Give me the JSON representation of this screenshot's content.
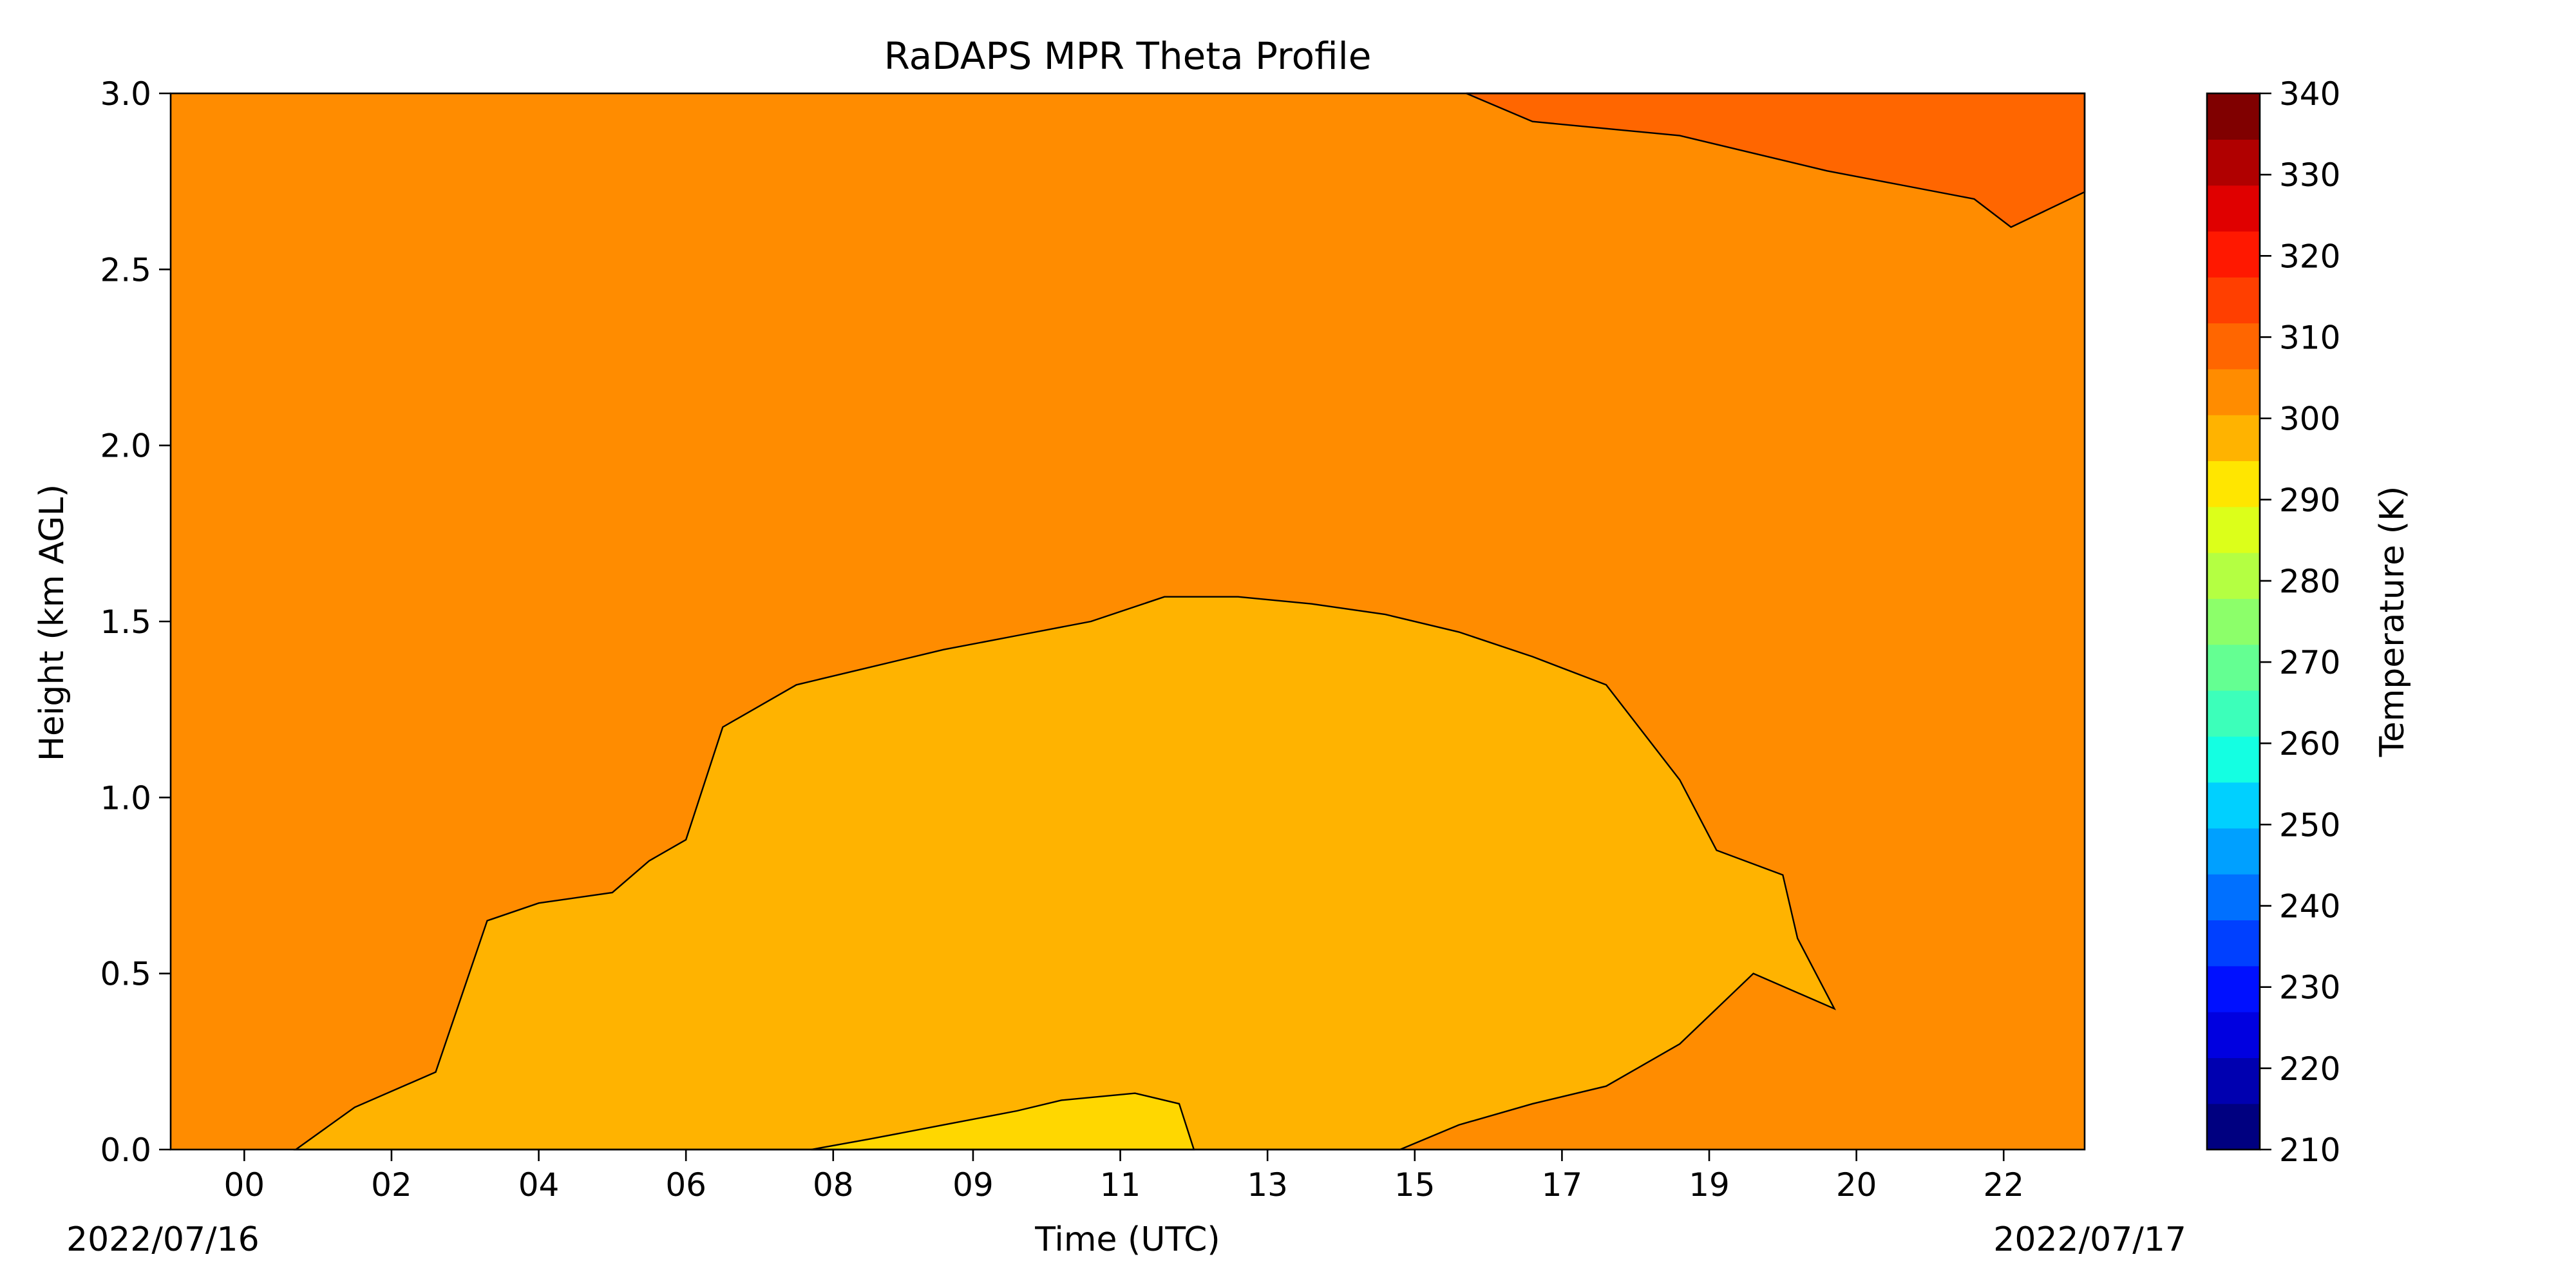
{
  "chart_data": {
    "type": "heatmap",
    "subtype": "filled-contour",
    "title": "RaDAPS MPR Theta Profile",
    "xlabel": "Time (UTC)",
    "ylabel": "Height (km AGL)",
    "x_tick_labels": [
      "00",
      "02",
      "04",
      "06",
      "08",
      "09",
      "11",
      "13",
      "15",
      "17",
      "19",
      "20",
      "22"
    ],
    "x_start_label": "2022/07/16",
    "x_end_label": "2022/07/17",
    "x_range_hours": [
      -1.0,
      25.0
    ],
    "x_tick_hours": [
      0,
      2,
      4,
      6,
      8,
      9.9,
      11.9,
      13.9,
      15.9,
      17.9,
      19.9,
      21.9,
      23.9
    ],
    "ylim": [
      0.0,
      3.0
    ],
    "y_ticks": [
      "0.0",
      "0.5",
      "1.0",
      "1.5",
      "2.0",
      "2.5",
      "3.0"
    ],
    "colorbar": {
      "label": "Temperature (K)",
      "min": 210,
      "max": 340,
      "step": 5,
      "tick_values": [
        210,
        220,
        230,
        240,
        250,
        260,
        270,
        280,
        290,
        300,
        310,
        320,
        330,
        340
      ],
      "colors": [
        "#000080",
        "#0000b0",
        "#0000e0",
        "#0010ff",
        "#0040ff",
        "#0070ff",
        "#00a0ff",
        "#00d0ff",
        "#14ffe2",
        "#3cffba",
        "#64ff92",
        "#8cff6a",
        "#b4ff42",
        "#dcff1a",
        "#ffe600",
        "#ffb300",
        "#ff8c00",
        "#ff6600",
        "#ff3f00",
        "#ff1800",
        "#e00000",
        "#b00000",
        "#800000"
      ]
    },
    "regions": [
      {
        "range_K": [
          305,
          310
        ],
        "color": "#ff8c00",
        "role": "background"
      },
      {
        "range_K": [
          310,
          315
        ],
        "color": "#ff6600",
        "role": "upper warm layer",
        "boundary_hours": [
          16.6,
          17.5,
          18.5,
          19.5,
          20.5,
          21.5,
          22.5,
          23.5,
          24.0,
          25.0
        ],
        "boundary_km": [
          3.0,
          2.92,
          2.9,
          2.88,
          2.83,
          2.78,
          2.74,
          2.7,
          2.62,
          2.72
        ]
      },
      {
        "range_K": [
          300,
          305
        ],
        "color": "#ffb300",
        "role": "boundary layer",
        "top_hours": [
          0.7,
          1.5,
          2.6,
          3.3,
          4.0,
          5.0,
          5.5,
          6.0,
          6.5,
          7.5,
          8.5,
          9.5,
          10.5,
          11.5,
          12.5,
          13.5,
          14.5,
          15.5,
          16.5,
          17.5,
          18.5,
          19.5,
          20.0,
          20.9,
          21.1,
          21.6
        ],
        "top_km": [
          0.0,
          0.12,
          0.22,
          0.65,
          0.7,
          0.73,
          0.82,
          0.88,
          1.2,
          1.32,
          1.37,
          1.42,
          1.46,
          1.5,
          1.57,
          1.57,
          1.55,
          1.52,
          1.47,
          1.4,
          1.32,
          1.05,
          0.85,
          0.78,
          0.6,
          0.4
        ],
        "bottom_hours": [
          21.6,
          20.5,
          19.5,
          18.5,
          17.5,
          16.5,
          15.7
        ],
        "bottom_km": [
          0.4,
          0.5,
          0.3,
          0.18,
          0.13,
          0.07,
          0.0
        ]
      },
      {
        "range_K": [
          295,
          300
        ],
        "color": "#ffd700",
        "role": "surface cool pocket",
        "top_hours": [
          7.7,
          8.5,
          9.5,
          10.5,
          11.1,
          12.1,
          12.7,
          12.9
        ],
        "top_km": [
          0.0,
          0.03,
          0.07,
          0.11,
          0.14,
          0.16,
          0.13,
          0.0
        ]
      }
    ]
  }
}
